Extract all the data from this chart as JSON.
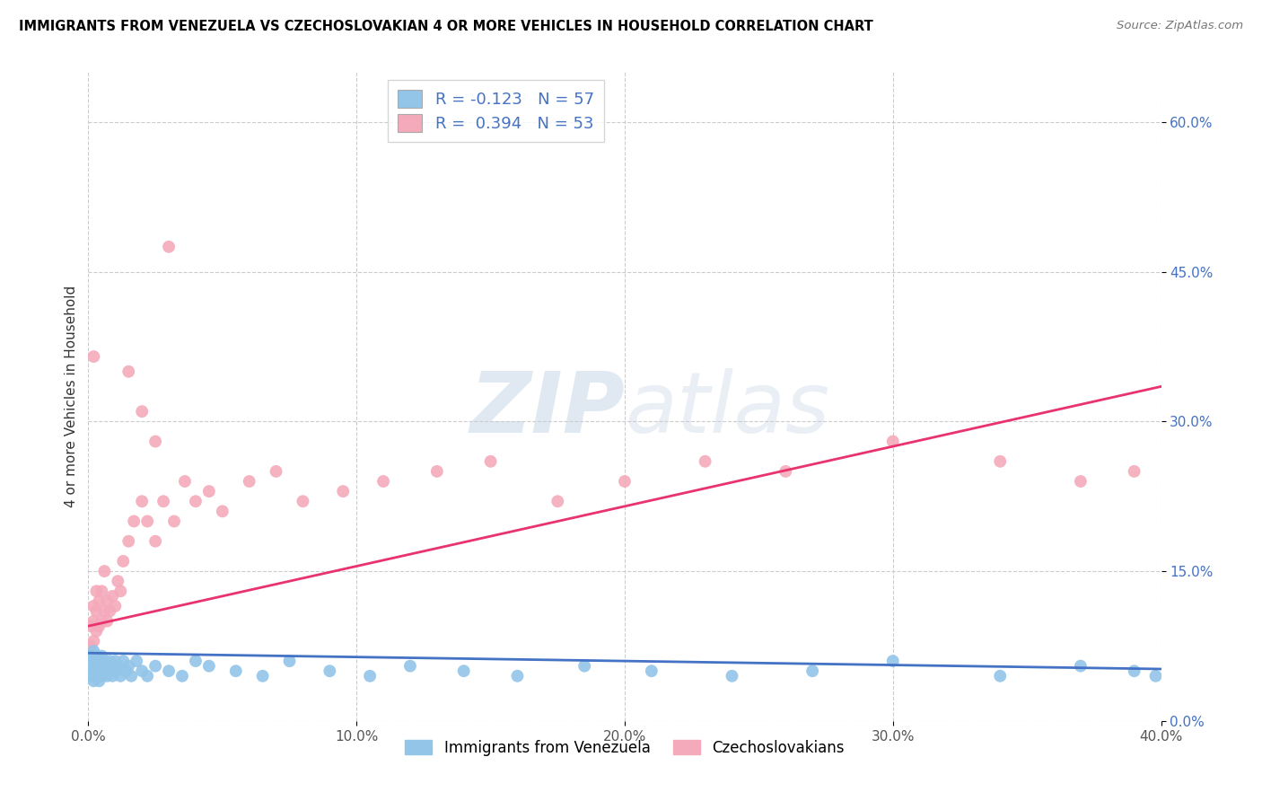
{
  "title": "IMMIGRANTS FROM VENEZUELA VS CZECHOSLOVAKIAN 4 OR MORE VEHICLES IN HOUSEHOLD CORRELATION CHART",
  "source": "Source: ZipAtlas.com",
  "ylabel": "4 or more Vehicles in Household",
  "xlabel_blue": "Immigrants from Venezuela",
  "xlabel_pink": "Czechoslovakians",
  "legend_blue_R": "R = -0.123",
  "legend_blue_N": "N = 57",
  "legend_pink_R": "R =  0.394",
  "legend_pink_N": "N = 53",
  "xlim": [
    0.0,
    0.4
  ],
  "ylim": [
    0.0,
    0.65
  ],
  "xticks": [
    0.0,
    0.1,
    0.2,
    0.3,
    0.4
  ],
  "yticks": [
    0.0,
    0.15,
    0.3,
    0.45,
    0.6
  ],
  "xtick_labels": [
    "0.0%",
    "10.0%",
    "20.0%",
    "30.0%",
    "40.0%"
  ],
  "ytick_labels": [
    "0.0%",
    "15.0%",
    "30.0%",
    "45.0%",
    "60.0%"
  ],
  "blue_color": "#92C5E8",
  "pink_color": "#F4AABB",
  "blue_line_color": "#4472C4",
  "pink_line_color": "#E8336E",
  "blue_scatter_x": [
    0.001,
    0.001,
    0.001,
    0.002,
    0.002,
    0.002,
    0.002,
    0.003,
    0.003,
    0.003,
    0.004,
    0.004,
    0.004,
    0.005,
    0.005,
    0.005,
    0.006,
    0.006,
    0.007,
    0.007,
    0.008,
    0.008,
    0.009,
    0.009,
    0.01,
    0.01,
    0.011,
    0.012,
    0.013,
    0.014,
    0.015,
    0.016,
    0.018,
    0.02,
    0.022,
    0.025,
    0.03,
    0.035,
    0.04,
    0.045,
    0.055,
    0.065,
    0.075,
    0.09,
    0.105,
    0.12,
    0.14,
    0.16,
    0.185,
    0.21,
    0.24,
    0.27,
    0.3,
    0.34,
    0.37,
    0.39,
    0.398
  ],
  "blue_scatter_y": [
    0.055,
    0.045,
    0.065,
    0.04,
    0.06,
    0.05,
    0.07,
    0.045,
    0.055,
    0.065,
    0.05,
    0.06,
    0.04,
    0.055,
    0.045,
    0.065,
    0.05,
    0.06,
    0.055,
    0.045,
    0.06,
    0.05,
    0.055,
    0.045,
    0.06,
    0.05,
    0.055,
    0.045,
    0.06,
    0.05,
    0.055,
    0.045,
    0.06,
    0.05,
    0.045,
    0.055,
    0.05,
    0.045,
    0.06,
    0.055,
    0.05,
    0.045,
    0.06,
    0.05,
    0.045,
    0.055,
    0.05,
    0.045,
    0.055,
    0.05,
    0.045,
    0.05,
    0.06,
    0.045,
    0.055,
    0.05,
    0.045
  ],
  "pink_scatter_x": [
    0.001,
    0.001,
    0.002,
    0.002,
    0.002,
    0.003,
    0.003,
    0.003,
    0.004,
    0.004,
    0.005,
    0.005,
    0.006,
    0.006,
    0.007,
    0.007,
    0.008,
    0.009,
    0.01,
    0.011,
    0.012,
    0.013,
    0.015,
    0.017,
    0.02,
    0.022,
    0.025,
    0.028,
    0.032,
    0.036,
    0.04,
    0.045,
    0.05,
    0.06,
    0.07,
    0.08,
    0.095,
    0.11,
    0.13,
    0.15,
    0.175,
    0.2,
    0.23,
    0.26,
    0.3,
    0.34,
    0.37,
    0.39,
    0.002,
    0.025,
    0.02,
    0.015,
    0.03
  ],
  "pink_scatter_y": [
    0.075,
    0.095,
    0.08,
    0.1,
    0.115,
    0.09,
    0.11,
    0.13,
    0.095,
    0.12,
    0.1,
    0.13,
    0.11,
    0.15,
    0.1,
    0.12,
    0.11,
    0.125,
    0.115,
    0.14,
    0.13,
    0.16,
    0.18,
    0.2,
    0.22,
    0.2,
    0.18,
    0.22,
    0.2,
    0.24,
    0.22,
    0.23,
    0.21,
    0.24,
    0.25,
    0.22,
    0.23,
    0.24,
    0.25,
    0.26,
    0.22,
    0.24,
    0.26,
    0.25,
    0.28,
    0.26,
    0.24,
    0.25,
    0.365,
    0.28,
    0.31,
    0.35,
    0.475
  ],
  "blue_line_x0": 0.0,
  "blue_line_x1": 0.4,
  "blue_line_y0": 0.068,
  "blue_line_y1": 0.052,
  "pink_line_x0": 0.0,
  "pink_line_x1": 0.4,
  "pink_line_y0": 0.095,
  "pink_line_y1": 0.335
}
